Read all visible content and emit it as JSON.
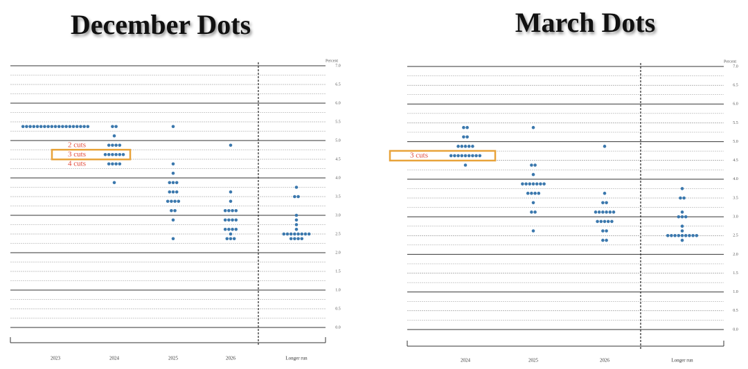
{
  "chart_data": [
    {
      "type": "dotplot",
      "title": "December Dots",
      "y_label": "Percent",
      "color": "#3b78ad",
      "categories": [
        "2023",
        "2024",
        "2025",
        "2026",
        "Longer run"
      ],
      "dots": [
        [
          5.375,
          5.375,
          5.375,
          5.375,
          5.375,
          5.375,
          5.375,
          5.375,
          5.375,
          5.375,
          5.375,
          5.375,
          5.375,
          5.375,
          5.375,
          5.375,
          5.375,
          5.375,
          5.375
        ],
        [
          5.375,
          5.375,
          5.125,
          4.875,
          4.875,
          4.875,
          4.875,
          4.625,
          4.625,
          4.625,
          4.625,
          4.625,
          4.625,
          4.375,
          4.375,
          4.375,
          4.375,
          3.875
        ],
        [
          5.375,
          4.375,
          4.125,
          3.875,
          3.875,
          3.875,
          3.625,
          3.625,
          3.625,
          3.375,
          3.375,
          3.375,
          3.375,
          3.125,
          3.125,
          2.875,
          2.375
        ],
        [
          4.875,
          3.625,
          3.375,
          3.125,
          3.125,
          3.125,
          3.125,
          2.875,
          2.875,
          2.875,
          2.875,
          2.625,
          2.625,
          2.625,
          2.625,
          2.5,
          2.375,
          2.375,
          2.375
        ],
        [
          3.75,
          3.5,
          3.5,
          3.0,
          2.875,
          2.75,
          2.625,
          2.5,
          2.5,
          2.5,
          2.5,
          2.5,
          2.5,
          2.5,
          2.5,
          2.375,
          2.375,
          2.375,
          2.375
        ]
      ],
      "annotations": [
        {
          "text": "2 cuts",
          "y": 4.875,
          "boxed": false
        },
        {
          "text": "3 cuts",
          "y": 4.625,
          "boxed": true
        },
        {
          "text": "4 cuts",
          "y": 4.375,
          "boxed": false
        }
      ],
      "ylim": [
        0,
        7
      ],
      "yticks": [
        {
          "value": 0,
          "label": "0.0"
        },
        {
          "value": 0.5,
          "label": "0.5"
        },
        {
          "value": 1,
          "label": "1.0"
        },
        {
          "value": 1.5,
          "label": "1.5"
        },
        {
          "value": 2,
          "label": "2.0"
        },
        {
          "value": 2.5,
          "label": "2.5"
        },
        {
          "value": 3,
          "label": "3.0"
        },
        {
          "value": 3.5,
          "label": "3.5"
        },
        {
          "value": 4,
          "label": "4.0"
        },
        {
          "value": 4.5,
          "label": "4.5"
        },
        {
          "value": 5,
          "label": "5.0"
        },
        {
          "value": 5.5,
          "label": "5.5"
        },
        {
          "value": 6,
          "label": "6.0"
        },
        {
          "value": 6.5,
          "label": "6.5"
        },
        {
          "value": 7,
          "label": "7.0"
        }
      ]
    },
    {
      "type": "dotplot",
      "title": "March Dots",
      "y_label": "Percent",
      "color": "#3b78ad",
      "categories": [
        "2024",
        "2025",
        "2026",
        "Longer run"
      ],
      "dots": [
        [
          5.375,
          5.375,
          5.125,
          5.125,
          4.875,
          4.875,
          4.875,
          4.875,
          4.875,
          4.625,
          4.625,
          4.625,
          4.625,
          4.625,
          4.625,
          4.625,
          4.625,
          4.625,
          4.375
        ],
        [
          5.375,
          4.375,
          4.375,
          4.125,
          3.875,
          3.875,
          3.875,
          3.875,
          3.875,
          3.875,
          3.875,
          3.625,
          3.625,
          3.625,
          3.625,
          3.375,
          3.125,
          3.125,
          2.625
        ],
        [
          4.875,
          3.625,
          3.375,
          3.375,
          3.125,
          3.125,
          3.125,
          3.125,
          3.125,
          3.125,
          2.875,
          2.875,
          2.875,
          2.875,
          2.875,
          2.625,
          2.625,
          2.375,
          2.375
        ],
        [
          3.75,
          3.5,
          3.5,
          3.125,
          3.0,
          3.0,
          3.0,
          2.75,
          2.625,
          2.5,
          2.5,
          2.5,
          2.5,
          2.5,
          2.5,
          2.5,
          2.5,
          2.5,
          2.375
        ]
      ],
      "annotations": [
        {
          "text": "3 cuts",
          "y": 4.625,
          "boxed": true
        }
      ],
      "ylim": [
        0,
        7
      ],
      "yticks": [
        {
          "value": 0,
          "label": "0.0"
        },
        {
          "value": 0.5,
          "label": "0.5"
        },
        {
          "value": 1,
          "label": "1.0"
        },
        {
          "value": 1.5,
          "label": "1.5"
        },
        {
          "value": 2,
          "label": "2.0"
        },
        {
          "value": 2.5,
          "label": "2.5"
        },
        {
          "value": 3,
          "label": "3.0"
        },
        {
          "value": 3.5,
          "label": "3.5"
        },
        {
          "value": 4,
          "label": "4.0"
        },
        {
          "value": 4.5,
          "label": "4.5"
        },
        {
          "value": 5,
          "label": "5.0"
        },
        {
          "value": 5.5,
          "label": "5.5"
        },
        {
          "value": 6,
          "label": "6.0"
        },
        {
          "value": 6.5,
          "label": "6.5"
        },
        {
          "value": 7,
          "label": "7.0"
        }
      ]
    }
  ]
}
